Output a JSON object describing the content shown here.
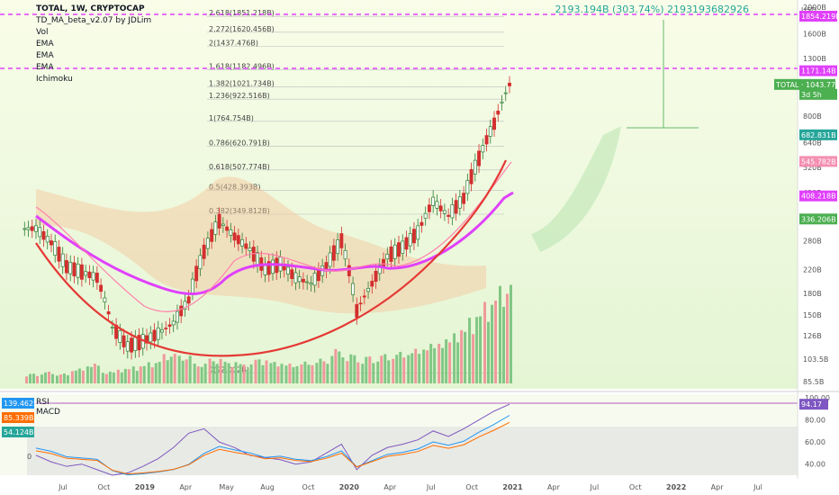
{
  "legend": {
    "symbol_line": "TOTAL, 1W, CRYPTOCAP",
    "indicators": [
      "TD_MA_beta_v2.07 by JDLim",
      "Vol",
      "EMA",
      "EMA",
      "EMA",
      "Ichimoku"
    ]
  },
  "top_note": "2193.194B (303.74%) 2193193682926",
  "fib_levels": [
    {
      "label": "2.618(1851.218B)",
      "price": 1851
    },
    {
      "label": "2.272(1620.456B)",
      "price": 1620
    },
    {
      "label": "2(1437.476B)",
      "price": 1437
    },
    {
      "label": "1.618(1182.496B)",
      "price": 1182
    },
    {
      "label": "1.382(1021.734B)",
      "price": 1022
    },
    {
      "label": "1.236(922.516B)",
      "price": 922
    },
    {
      "label": "1(764.754B)",
      "price": 765
    },
    {
      "label": "0.786(620.791B)",
      "price": 621
    },
    {
      "label": "0.618(507.774B)",
      "price": 508
    },
    {
      "label": "0.5(428.393B)",
      "price": 428
    },
    {
      "label": "0.382(349.812B)",
      "price": 350
    },
    {
      "label": "0(92.002B)",
      "price": 92
    }
  ],
  "price_axis": {
    "currency": "USD",
    "ticks": [
      "2000B",
      "1600B",
      "1300B",
      "1000B",
      "800B",
      "640B",
      "520B",
      "420B",
      "340B",
      "280B",
      "220B",
      "180B",
      "150B",
      "126B",
      "103.5B",
      "85.5B"
    ],
    "price_labels": [
      {
        "text": "1854.219B",
        "color": "#e040fb"
      },
      {
        "text": "1171.14B",
        "color": "#e040fb"
      },
      {
        "text": "TOTAL · 1043.778B",
        "color": "#4caf50"
      },
      {
        "text": "3d 5h",
        "color": "#4caf50"
      },
      {
        "text": "682.831B",
        "color": "#26a69a"
      },
      {
        "text": "545.782B",
        "color": "#f48fb1"
      },
      {
        "text": "408.218B",
        "color": "#e040fb"
      },
      {
        "text": "336.206B",
        "color": "#4caf50"
      }
    ]
  },
  "time_axis": [
    "Jul",
    "Oct",
    "2019",
    "Apr",
    "May",
    "Aug",
    "Oct",
    "2020",
    "Apr",
    "Jul",
    "Oct",
    "2021",
    "Apr",
    "Jul",
    "Oct",
    "2022",
    "Apr",
    "Jul"
  ],
  "indicator_panel": {
    "labels": [
      "RSI",
      "MACD"
    ],
    "axis": [
      "100.00",
      "80.00",
      "60.00",
      "40.00"
    ],
    "left_badges": [
      {
        "text": "139.462B",
        "color": "#2196f3"
      },
      {
        "text": "85.339B",
        "color": "#ff6d00"
      },
      {
        "text": "54.124B",
        "color": "#26a69a"
      }
    ],
    "left_zero": "0",
    "rsi_value": "94.17"
  },
  "chart_data": {
    "type": "candlestick",
    "title": "TOTAL, 1W, CRYPTOCAP",
    "log_scale": true,
    "ylim": [
      85.5,
      2000
    ],
    "x_range": [
      "2018-06",
      "2022-08"
    ],
    "horizontal_lines": [
      1854.219,
      1171.14
    ],
    "close_path": [
      {
        "t": "2018-06",
        "v": 310
      },
      {
        "t": "2018-07",
        "v": 275
      },
      {
        "t": "2018-08",
        "v": 225
      },
      {
        "t": "2018-09",
        "v": 215
      },
      {
        "t": "2018-10",
        "v": 205
      },
      {
        "t": "2018-11",
        "v": 135
      },
      {
        "t": "2018-12",
        "v": 115
      },
      {
        "t": "2019-01",
        "v": 120
      },
      {
        "t": "2019-02",
        "v": 128
      },
      {
        "t": "2019-03",
        "v": 140
      },
      {
        "t": "2019-04",
        "v": 170
      },
      {
        "t": "2019-05",
        "v": 255
      },
      {
        "t": "2019-06",
        "v": 330
      },
      {
        "t": "2019-07",
        "v": 290
      },
      {
        "t": "2019-08",
        "v": 260
      },
      {
        "t": "2019-09",
        "v": 220
      },
      {
        "t": "2019-10",
        "v": 230
      },
      {
        "t": "2019-11",
        "v": 205
      },
      {
        "t": "2019-12",
        "v": 195
      },
      {
        "t": "2020-01",
        "v": 225
      },
      {
        "t": "2020-02",
        "v": 280
      },
      {
        "t": "2020-03",
        "v": 155
      },
      {
        "t": "2020-04",
        "v": 195
      },
      {
        "t": "2020-05",
        "v": 245
      },
      {
        "t": "2020-06",
        "v": 265
      },
      {
        "t": "2020-07",
        "v": 300
      },
      {
        "t": "2020-08",
        "v": 390
      },
      {
        "t": "2020-09",
        "v": 345
      },
      {
        "t": "2020-10",
        "v": 400
      },
      {
        "t": "2020-11",
        "v": 560
      },
      {
        "t": "2020-12",
        "v": 750
      },
      {
        "t": "2021-01",
        "v": 1043
      }
    ],
    "volume_relative": [
      0.1,
      0.12,
      0.1,
      0.15,
      0.2,
      0.12,
      0.15,
      0.18,
      0.22,
      0.3,
      0.28,
      0.2,
      0.25,
      0.22,
      0.2,
      0.25,
      0.22,
      0.2,
      0.22,
      0.25,
      0.35,
      0.3,
      0.28,
      0.3,
      0.32,
      0.35,
      0.4,
      0.45,
      0.55,
      0.7,
      0.85,
      1.0
    ],
    "rsi": [
      48,
      42,
      38,
      40,
      35,
      30,
      32,
      38,
      45,
      55,
      68,
      72,
      60,
      55,
      48,
      46,
      44,
      40,
      42,
      50,
      58,
      35,
      48,
      55,
      58,
      62,
      70,
      65,
      72,
      80,
      88,
      94.17
    ]
  }
}
